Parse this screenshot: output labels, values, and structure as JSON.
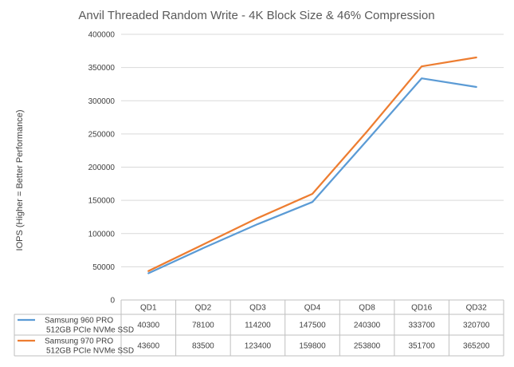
{
  "chart_data": {
    "type": "line",
    "title": "Anvil Threaded Random Write - 4K Block Size & 46% Compression",
    "ylabel": "IOPS (Higher = Better Performance)",
    "xlabel": "",
    "ylim": [
      0,
      400000
    ],
    "yticks": [
      "0",
      "50000",
      "100000",
      "150000",
      "200000",
      "250000",
      "300000",
      "350000",
      "400000"
    ],
    "categories": [
      "QD1",
      "QD2",
      "QD3",
      "QD4",
      "QD8",
      "QD16",
      "QD32"
    ],
    "grid": true,
    "legend_placement": "data-table",
    "series": [
      {
        "name_line1": "Samsung 960 PRO",
        "name_line2": "512GB PCIe NVMe SSD",
        "color": "#5b9bd5",
        "values": [
          40300,
          78100,
          114200,
          147500,
          240300,
          333700,
          320700
        ]
      },
      {
        "name_line1": "Samsung 970 PRO",
        "name_line2": "512GB PCIe NVMe SSD",
        "color": "#ed7d31",
        "values": [
          43600,
          83500,
          123400,
          159800,
          253800,
          351700,
          365200
        ]
      }
    ]
  }
}
